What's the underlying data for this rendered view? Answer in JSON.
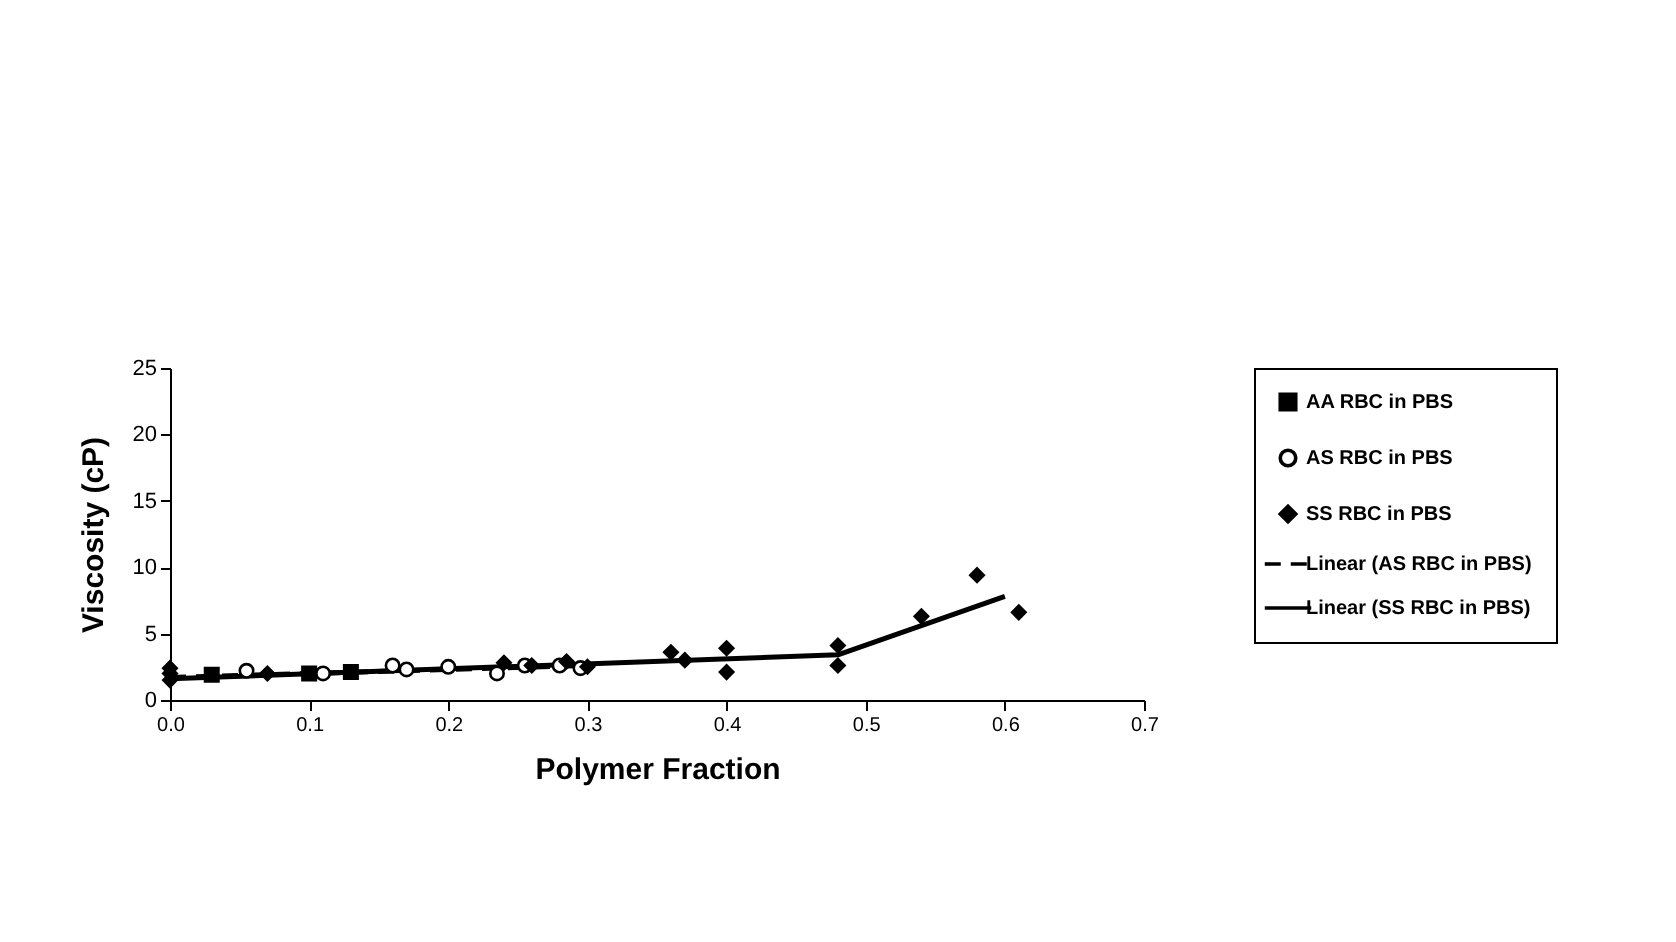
{
  "chart_data": {
    "type": "scatter",
    "xlabel": "Polymer Fraction",
    "ylabel": "Viscosity (cP)",
    "xlim": [
      0,
      0.7
    ],
    "ylim": [
      0,
      25
    ],
    "xticks": [
      {
        "value": 0,
        "label": "0.0"
      },
      {
        "value": 0.1,
        "label": "0.1"
      },
      {
        "value": 0.2,
        "label": "0.2"
      },
      {
        "value": 0.3,
        "label": "0.3"
      },
      {
        "value": 0.4,
        "label": "0.4"
      },
      {
        "value": 0.5,
        "label": "0.5"
      },
      {
        "value": 0.6,
        "label": "0.6"
      },
      {
        "value": 0.7,
        "label": "0.7"
      }
    ],
    "yticks": [
      0,
      5,
      10,
      15,
      20,
      25
    ],
    "grid": false,
    "legend": "right",
    "series": [
      {
        "name": "AA RBC in PBS",
        "marker": "square",
        "color": "#000000",
        "x": [
          0.03,
          0.1,
          0.13
        ],
        "values": [
          1.9,
          2.0,
          2.1
        ]
      },
      {
        "name": "AS RBC in PBS",
        "marker": "circle",
        "color": "#000000",
        "x": [
          0.055,
          0.11,
          0.16,
          0.17,
          0.2,
          0.235,
          0.255,
          0.28,
          0.29,
          0.295
        ],
        "values": [
          2.2,
          2.0,
          2.6,
          2.3,
          2.5,
          2.0,
          2.6,
          2.6,
          null,
          2.4
        ]
      },
      {
        "name": "SS RBC in PBS",
        "marker": "diamond",
        "color": "#000000",
        "x": [
          0,
          0,
          0,
          0.07,
          0.24,
          0.26,
          0.285,
          0.3,
          0.36,
          0.37,
          0.4,
          0.4,
          0.48,
          0.48,
          0.54,
          0.58,
          0.61
        ],
        "values": [
          1.5,
          2.0,
          2.4,
          2.0,
          2.8,
          2.6,
          2.9,
          2.5,
          3.6,
          3.0,
          3.9,
          2.1,
          4.1,
          2.6,
          6.3,
          9.4,
          6.6
        ]
      },
      {
        "name": "Linear (AS RBC in PBS)",
        "type": "line",
        "line_style": "dashed",
        "color": "#000000",
        "x": [
          0,
          0.3
        ],
        "values": [
          1.7,
          2.6
        ]
      },
      {
        "name": "Linear (SS RBC in PBS)",
        "type": "line",
        "line_style": "solid",
        "color": "#000000",
        "x": [
          0,
          0.48,
          0.6
        ],
        "values": [
          1.6,
          3.4,
          7.8
        ]
      }
    ]
  }
}
